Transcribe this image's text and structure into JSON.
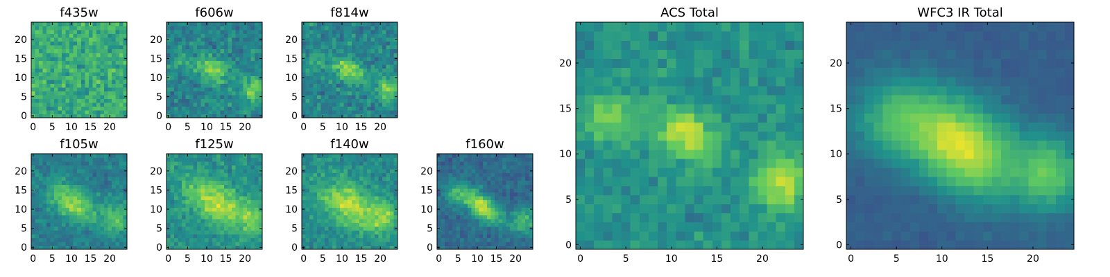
{
  "figure": {
    "colormap": "viridis",
    "colormap_stops": [
      "#440154",
      "#3b528b",
      "#21918c",
      "#5ec962",
      "#fde725"
    ],
    "frame_color": "#000000",
    "background": "#ffffff"
  },
  "chart_data": [
    {
      "type": "heatmap",
      "title": "f435w",
      "grid_size": 25,
      "xlim": [
        -0.5,
        24.5
      ],
      "ylim": [
        -0.5,
        24.5
      ],
      "xticks": [
        0,
        5,
        10,
        15,
        20
      ],
      "yticks": [
        0,
        5,
        10,
        15,
        20
      ],
      "origin": "lower",
      "appearance": "noisy, mostly green-yellow with scattered dark pixels; no clear source",
      "seed": 435,
      "noise": 0.55,
      "background_level": 0.62,
      "blobs": []
    },
    {
      "type": "heatmap",
      "title": "f606w",
      "grid_size": 25,
      "xlim": [
        -0.5,
        24.5
      ],
      "ylim": [
        -0.5,
        24.5
      ],
      "xticks": [
        0,
        5,
        10,
        15,
        20
      ],
      "yticks": [
        0,
        5,
        10,
        15,
        20
      ],
      "origin": "lower",
      "appearance": "faint bright blob near (11,12) and another near (22,7)",
      "seed": 606,
      "noise": 0.45,
      "background_level": 0.45,
      "blobs": [
        {
          "x": 11.5,
          "y": 12,
          "sx": 3.2,
          "sy": 2.2,
          "angle": -35,
          "amp": 0.35
        },
        {
          "x": 22,
          "y": 7,
          "sx": 2,
          "sy": 2.5,
          "angle": 0,
          "amp": 0.35
        },
        {
          "x": 3,
          "y": 14,
          "sx": 2,
          "sy": 2,
          "angle": 0,
          "amp": 0.15
        }
      ]
    },
    {
      "type": "heatmap",
      "title": "f814w",
      "grid_size": 25,
      "xlim": [
        -0.5,
        24.5
      ],
      "ylim": [
        -0.5,
        24.5
      ],
      "xticks": [
        0,
        5,
        10,
        15,
        20
      ],
      "yticks": [
        0,
        5,
        10,
        15,
        20
      ],
      "origin": "lower",
      "appearance": "bright blob near (11,12) and near (22,7)",
      "seed": 814,
      "noise": 0.45,
      "background_level": 0.45,
      "blobs": [
        {
          "x": 11.5,
          "y": 12,
          "sx": 3,
          "sy": 2,
          "angle": -35,
          "amp": 0.38
        },
        {
          "x": 22,
          "y": 7,
          "sx": 2,
          "sy": 2.5,
          "angle": 0,
          "amp": 0.35
        },
        {
          "x": 3,
          "y": 14,
          "sx": 2,
          "sy": 2,
          "angle": 0,
          "amp": 0.15
        }
      ]
    },
    {
      "type": "heatmap",
      "title": "f105w",
      "grid_size": 25,
      "xlim": [
        -0.5,
        24.5
      ],
      "ylim": [
        -0.5,
        24.5
      ],
      "xticks": [
        0,
        5,
        10,
        15,
        20
      ],
      "yticks": [
        0,
        5,
        10,
        15,
        20
      ],
      "origin": "lower",
      "appearance": "elongated bright structure along diagonal centered near (11,11)",
      "seed": 105,
      "noise": 0.32,
      "background_level": 0.42,
      "blobs": [
        {
          "x": 10.5,
          "y": 11.5,
          "sx": 5,
          "sy": 2.6,
          "angle": -35,
          "amp": 0.42
        },
        {
          "x": 22,
          "y": 8,
          "sx": 2.5,
          "sy": 3,
          "angle": 0,
          "amp": 0.28
        }
      ]
    },
    {
      "type": "heatmap",
      "title": "f125w",
      "grid_size": 25,
      "xlim": [
        -0.5,
        24.5
      ],
      "ylim": [
        -0.5,
        24.5
      ],
      "xticks": [
        0,
        5,
        10,
        15,
        20
      ],
      "yticks": [
        0,
        5,
        10,
        15,
        20
      ],
      "origin": "lower",
      "appearance": "broad bright structure across center",
      "seed": 125,
      "noise": 0.38,
      "background_level": 0.5,
      "blobs": [
        {
          "x": 12,
          "y": 12,
          "sx": 6,
          "sy": 3.2,
          "angle": -35,
          "amp": 0.4
        },
        {
          "x": 22,
          "y": 8,
          "sx": 2.5,
          "sy": 3,
          "angle": 0,
          "amp": 0.25
        }
      ]
    },
    {
      "type": "heatmap",
      "title": "f140w",
      "grid_size": 25,
      "xlim": [
        -0.5,
        24.5
      ],
      "ylim": [
        -0.5,
        24.5
      ],
      "xticks": [
        0,
        5,
        10,
        15,
        20
      ],
      "yticks": [
        0,
        5,
        10,
        15,
        20
      ],
      "origin": "lower",
      "appearance": "broad bright region across center",
      "seed": 140,
      "noise": 0.36,
      "background_level": 0.48,
      "blobs": [
        {
          "x": 12,
          "y": 11,
          "sx": 6,
          "sy": 3.4,
          "angle": -30,
          "amp": 0.42
        },
        {
          "x": 21,
          "y": 8,
          "sx": 2.5,
          "sy": 3,
          "angle": 0,
          "amp": 0.25
        }
      ]
    },
    {
      "type": "heatmap",
      "title": "f160w",
      "grid_size": 25,
      "xlim": [
        -0.5,
        24.5
      ],
      "ylim": [
        -0.5,
        24.5
      ],
      "xticks": [
        0,
        5,
        10,
        15,
        20
      ],
      "yticks": [
        0,
        5,
        10,
        15,
        20
      ],
      "origin": "lower",
      "appearance": "bright diagonal structure centered near (11,11), darker surroundings",
      "seed": 160,
      "noise": 0.3,
      "background_level": 0.35,
      "blobs": [
        {
          "x": 11,
          "y": 11,
          "sx": 4.5,
          "sy": 2,
          "angle": -40,
          "amp": 0.55
        },
        {
          "x": 22,
          "y": 7,
          "sx": 2,
          "sy": 2.5,
          "angle": 0,
          "amp": 0.35
        },
        {
          "x": 4,
          "y": 14,
          "sx": 2,
          "sy": 2,
          "angle": 0,
          "amp": 0.2
        }
      ]
    },
    {
      "type": "heatmap",
      "title": "ACS Total",
      "grid_size": 25,
      "xlim": [
        -0.5,
        24.5
      ],
      "ylim": [
        -0.5,
        24.5
      ],
      "xticks": [
        0,
        5,
        10,
        15,
        20
      ],
      "yticks": [
        0,
        5,
        10,
        15,
        20
      ],
      "origin": "lower",
      "appearance": "bright blob near (11,12), bright region near (22,7), bright area near (3,14)",
      "seed": 700,
      "noise": 0.32,
      "background_level": 0.5,
      "blobs": [
        {
          "x": 11.5,
          "y": 12,
          "sx": 2.5,
          "sy": 1.8,
          "angle": -35,
          "amp": 0.42
        },
        {
          "x": 22,
          "y": 7,
          "sx": 1.8,
          "sy": 2.3,
          "angle": 0,
          "amp": 0.42
        },
        {
          "x": 3,
          "y": 14,
          "sx": 2,
          "sy": 1.8,
          "angle": 0,
          "amp": 0.3
        }
      ]
    },
    {
      "type": "heatmap",
      "title": "WFC3 IR Total",
      "grid_size": 25,
      "xlim": [
        -0.5,
        24.5
      ],
      "ylim": [
        -0.5,
        24.5
      ],
      "xticks": [
        0,
        5,
        10,
        15,
        20
      ],
      "yticks": [
        0,
        5,
        10,
        15,
        20
      ],
      "origin": "lower",
      "appearance": "smooth bright blob centered near (12,11) with secondary near (22,8); dark corners",
      "seed": 900,
      "noise": 0.12,
      "background_level": 0.3,
      "blobs": [
        {
          "x": 12,
          "y": 11,
          "sx": 5,
          "sy": 3.3,
          "angle": -35,
          "amp": 0.65
        },
        {
          "x": 22,
          "y": 8,
          "sx": 2.5,
          "sy": 3,
          "angle": 0,
          "amp": 0.4
        },
        {
          "x": 4,
          "y": 14,
          "sx": 3,
          "sy": 3,
          "angle": 0,
          "amp": 0.25
        }
      ]
    }
  ]
}
